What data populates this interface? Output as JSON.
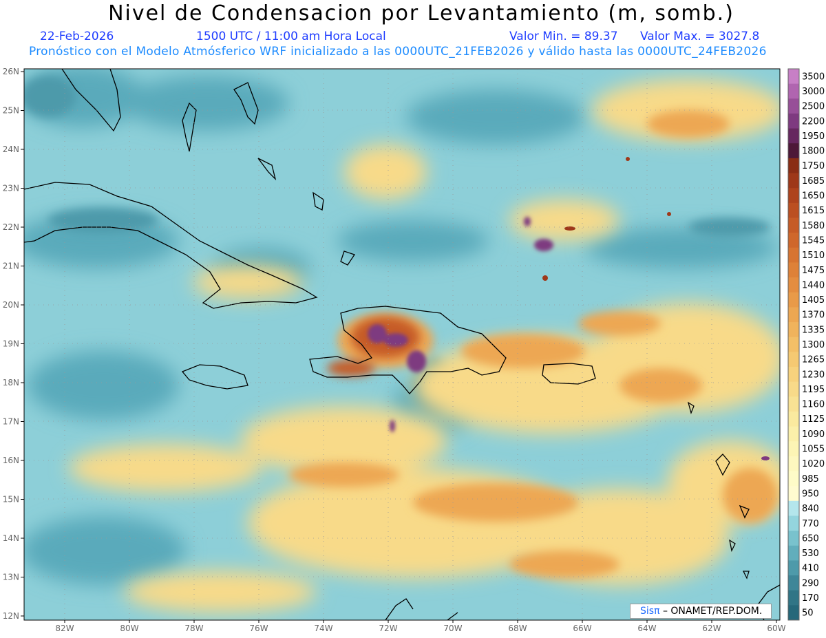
{
  "header": {
    "title": "Nivel de Condensacion por Levantamiento (m, somb.)",
    "date": "22-Feb-2026",
    "time": "1500 UTC / 11:00 am Hora Local",
    "valmin": "Valor Min. = 89.37",
    "valmax": "Valor Max. = 3027.8",
    "model_line": "Pronóstico con el Modelo Atmósferico WRF inicializado a las 0000UTC_21FEB2026 y válido hasta las  0000UTC_24FEB2026"
  },
  "credit": {
    "brand": "Sisπ",
    "org": "– ONAMET/REP.DOM."
  },
  "axes": {
    "lon_labels": [
      "82W",
      "80W",
      "78W",
      "76W",
      "74W",
      "72W",
      "70W",
      "68W",
      "66W",
      "64W",
      "62W",
      "60W"
    ],
    "lat_labels": [
      "26N",
      "25N",
      "24N",
      "23N",
      "22N",
      "21N",
      "20N",
      "19N",
      "18N",
      "17N",
      "16N",
      "15N",
      "14N",
      "13N",
      "12N"
    ]
  },
  "colorbar": {
    "levels": [
      "3500",
      "3000",
      "2500",
      "2200",
      "1950",
      "1800",
      "1750",
      "1685",
      "1650",
      "1615",
      "1580",
      "1545",
      "1510",
      "1475",
      "1440",
      "1405",
      "1370",
      "1335",
      "1300",
      "1265",
      "1230",
      "1195",
      "1160",
      "1125",
      "1090",
      "1055",
      "1020",
      "985",
      "950",
      "840",
      "770",
      "650",
      "530",
      "410",
      "290",
      "170",
      "50"
    ],
    "colors": [
      "#c77fc6",
      "#b065b0",
      "#974f98",
      "#7e3a80",
      "#66275f",
      "#4d1838",
      "#8a2d15",
      "#9e3819",
      "#ae431d",
      "#bb4f21",
      "#c65b26",
      "#cf672b",
      "#d77431",
      "#de8138",
      "#e48d40",
      "#e99a48",
      "#eda752",
      "#f0b35c",
      "#f3bf67",
      "#f5c972",
      "#f7d27d",
      "#f8da89",
      "#f9e294",
      "#faea9f",
      "#fbf0aa",
      "#fcf5b5",
      "#fdf8bf",
      "#fefbc8",
      "#fffbd0",
      "#b4e6ec",
      "#94d5de",
      "#79c2cd",
      "#62aebc",
      "#4e9aaa",
      "#3e8698",
      "#317586",
      "#26687a"
    ]
  },
  "legend_colors": {
    "sea_base": "#8dcfd8",
    "cool_dark": "#4e9fb1",
    "warm": "#f6d77a",
    "hot": "#de8138",
    "very_hot": "#b14a1c",
    "max": "#7e3a80",
    "coast": "#000000"
  }
}
